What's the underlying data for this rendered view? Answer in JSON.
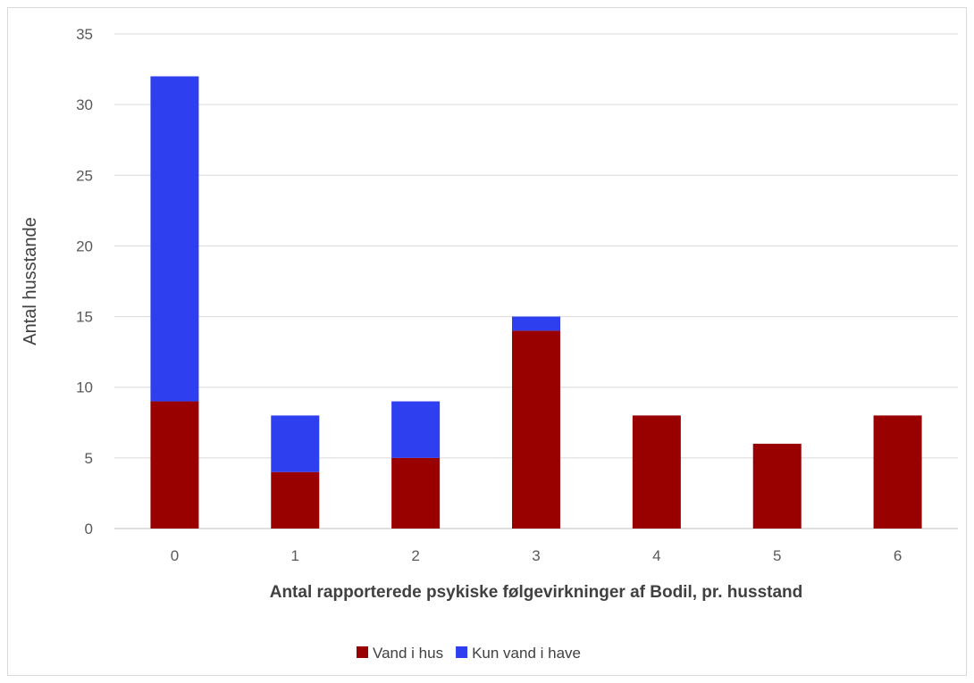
{
  "chart_data": {
    "type": "bar",
    "stacked": true,
    "categories": [
      "0",
      "1",
      "2",
      "3",
      "4",
      "5",
      "6"
    ],
    "series": [
      {
        "name": "Vand i hus",
        "color": "#990000",
        "values": [
          9,
          4,
          5,
          14,
          8,
          6,
          8
        ]
      },
      {
        "name": "Kun vand i have",
        "color": "#2e3ff0",
        "values": [
          23,
          4,
          4,
          1,
          0,
          0,
          0
        ]
      }
    ],
    "title": "",
    "xlabel": "Antal rapporterede psykiske følgevirkninger af Bodil, pr. husstand",
    "ylabel": "Antal husstande",
    "ylim": [
      0,
      35
    ],
    "yticks": [
      0,
      5,
      10,
      15,
      20,
      25,
      30,
      35
    ],
    "grid": true,
    "legend_position": "bottom"
  }
}
